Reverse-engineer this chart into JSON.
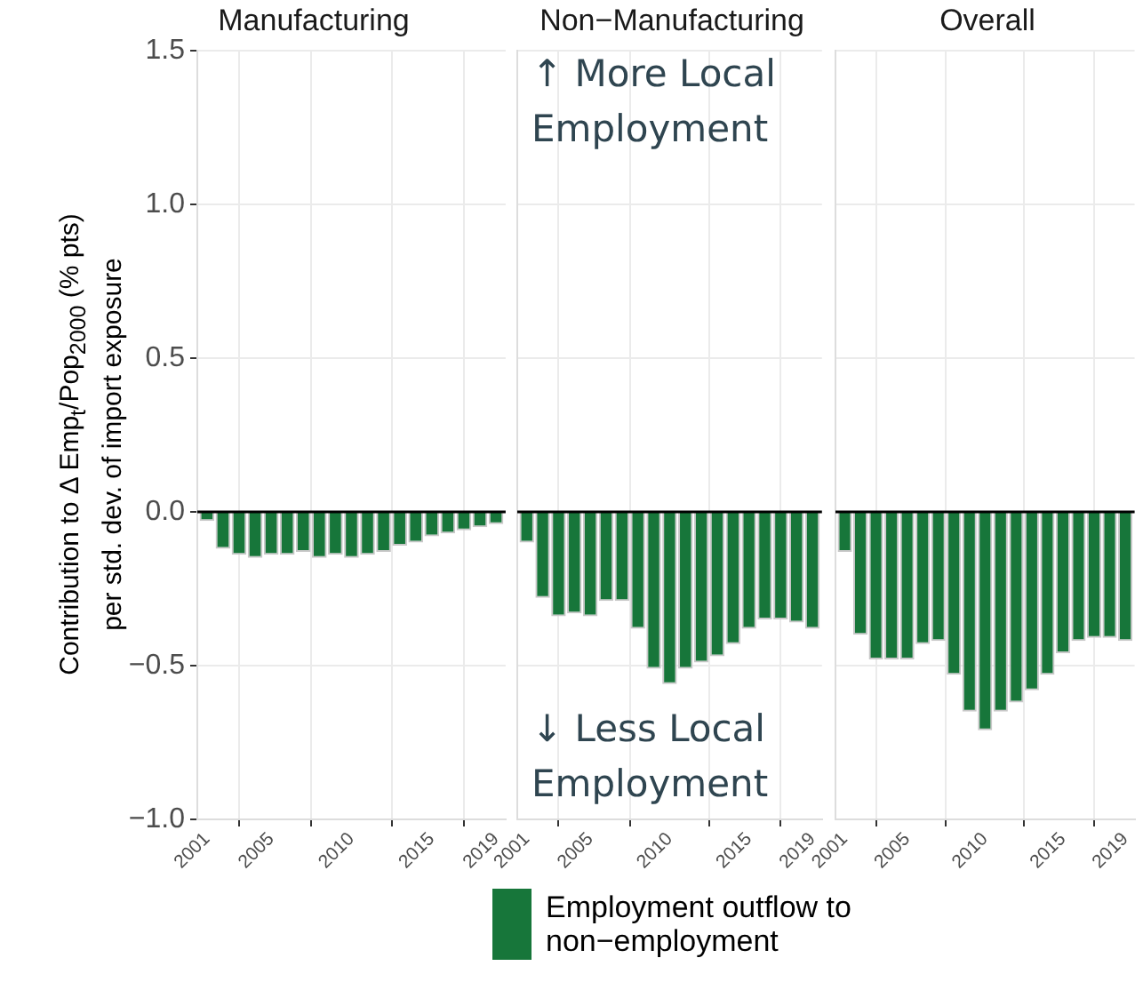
{
  "chart_data": [
    {
      "type": "bar",
      "title": "Manufacturing",
      "ylabel": "Contribution to Δ Emp$_{t}$/Pop$_{2000}$ (% pts)\nper std. dev. of import exposure",
      "x": [
        2001,
        2002,
        2003,
        2004,
        2005,
        2006,
        2007,
        2008,
        2009,
        2010,
        2011,
        2012,
        2013,
        2014,
        2015,
        2016,
        2017,
        2018,
        2019
      ],
      "series": [
        {
          "color": "#17763a",
          "values": [
            -0.03,
            -0.12,
            -0.14,
            -0.15,
            -0.14,
            -0.14,
            -0.13,
            -0.15,
            -0.14,
            -0.15,
            -0.14,
            -0.13,
            -0.11,
            -0.1,
            -0.08,
            -0.07,
            -0.06,
            -0.05,
            -0.04
          ]
        }
      ],
      "xlim": [
        2000.4,
        2019.6
      ],
      "xticks": [
        2001,
        2005,
        2010,
        2015,
        2019
      ],
      "ylim": [
        -1,
        1.5
      ],
      "yticks": [
        {
          "value": -1,
          "label": "−1.0"
        },
        {
          "value": -0.5,
          "label": "−0.5"
        },
        {
          "value": 0,
          "label": "0.0"
        },
        {
          "value": 0.5,
          "label": "0.5"
        },
        {
          "value": 1,
          "label": "1.0"
        },
        {
          "value": 1.5,
          "label": "1.5"
        }
      ],
      "grid": true,
      "ref_lines": [
        {
          "axis": "y",
          "value": 0,
          "color": "#000000"
        }
      ]
    },
    {
      "type": "bar",
      "title": "Non−Manufacturing",
      "annotations": [
        "↑ More Local Employment",
        "↓ Less Local Employment"
      ],
      "x": [
        2001,
        2002,
        2003,
        2004,
        2005,
        2006,
        2007,
        2008,
        2009,
        2010,
        2011,
        2012,
        2013,
        2014,
        2015,
        2016,
        2017,
        2018,
        2019
      ],
      "series": [
        {
          "name": "Employment outflow to non−employment",
          "color": "#17763a",
          "values": [
            -0.1,
            -0.28,
            -0.34,
            -0.33,
            -0.34,
            -0.29,
            -0.29,
            -0.38,
            -0.51,
            -0.56,
            -0.51,
            -0.49,
            -0.47,
            -0.43,
            -0.38,
            -0.35,
            -0.35,
            -0.36,
            -0.38
          ]
        }
      ],
      "xlim": [
        2000.4,
        2019.6
      ],
      "xticks": [
        2001,
        2005,
        2010,
        2015,
        2019
      ],
      "ylim": [
        -1,
        1.5
      ],
      "yticks": [
        -1,
        -0.5,
        0,
        0.5,
        1,
        1.5
      ],
      "tick_labels": "x",
      "grid": true,
      "legend": "bottom",
      "ref_lines": [
        {
          "axis": "y",
          "value": 0,
          "color": "#000000"
        }
      ]
    },
    {
      "type": "bar",
      "title": "Overall",
      "x": [
        2001,
        2002,
        2003,
        2004,
        2005,
        2006,
        2007,
        2008,
        2009,
        2010,
        2011,
        2012,
        2013,
        2014,
        2015,
        2016,
        2017,
        2018,
        2019
      ],
      "series": [
        {
          "color": "#17763a",
          "values": [
            -0.13,
            -0.4,
            -0.48,
            -0.48,
            -0.48,
            -0.43,
            -0.42,
            -0.53,
            -0.65,
            -0.71,
            -0.65,
            -0.62,
            -0.58,
            -0.53,
            -0.46,
            -0.42,
            -0.41,
            -0.41,
            -0.42
          ]
        }
      ],
      "xlim": [
        2000.4,
        2019.6
      ],
      "xticks": [
        2001,
        2005,
        2010,
        2015,
        2019
      ],
      "ylim": [
        -1,
        1.5
      ],
      "yticks": [
        -1,
        -0.5,
        0,
        0.5,
        1,
        1.5
      ],
      "tick_labels": "x",
      "grid": true,
      "ref_lines": [
        {
          "axis": "y",
          "value": 0,
          "color": "#000000"
        }
      ]
    }
  ]
}
